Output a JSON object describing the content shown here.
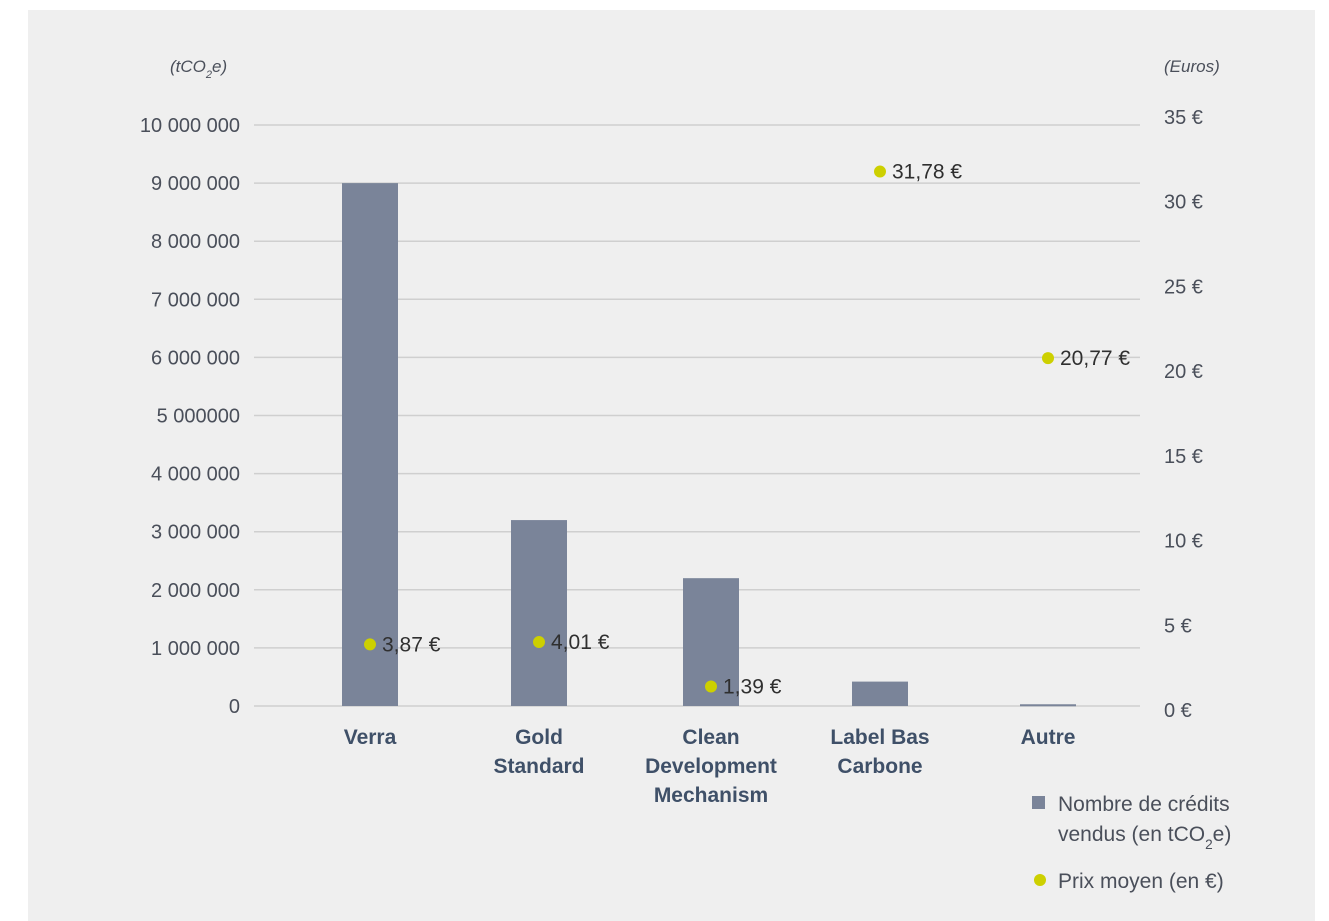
{
  "chart_data": {
    "type": "bar",
    "categories": [
      "Verra",
      "Gold Standard",
      "Clean Development Mechanism",
      "Label Bas Carbone",
      "Autre"
    ],
    "category_lines": [
      [
        "Verra"
      ],
      [
        "Gold",
        "Standard"
      ],
      [
        "Clean",
        "Development",
        "Mechanism"
      ],
      [
        "Label Bas",
        "Carbone"
      ],
      [
        "Autre"
      ]
    ],
    "series": [
      {
        "name": "Nombre de crédits vendus (en tCO₂e)",
        "type": "bar",
        "axis": "left",
        "values": [
          9000000,
          3200000,
          2200000,
          420000,
          30000
        ]
      },
      {
        "name": "Prix moyen (en €)",
        "type": "scatter",
        "axis": "right",
        "values": [
          3.87,
          4.01,
          1.39,
          31.78,
          20.77
        ],
        "labels": [
          "3,87 €",
          "4,01 €",
          "1,39 €",
          "31,78 €",
          "20,77 €"
        ]
      }
    ],
    "y_left": {
      "unit_label": "(tCO₂e)",
      "ylim": [
        0,
        10000000
      ],
      "ticks": [
        0,
        1000000,
        2000000,
        3000000,
        4000000,
        5000000,
        6000000,
        7000000,
        8000000,
        9000000,
        10000000
      ],
      "tick_labels": [
        "0",
        "1 000 000",
        "2 000 000",
        "3 000 000",
        "4 000 000",
        "5 000000",
        "6 000 000",
        "7 000 000",
        "8 000 000",
        "9 000 000",
        "10 000 000"
      ]
    },
    "y_right": {
      "unit_label": "(Euros)",
      "ylim": [
        0,
        35
      ],
      "ticks": [
        0,
        5,
        10,
        15,
        20,
        25,
        30,
        35
      ],
      "tick_labels": [
        "0 €",
        "5 €",
        "10 €",
        "15 €",
        "20 €",
        "25 €",
        "30 €",
        "35 €"
      ]
    },
    "grid": true,
    "legend_placement": "bottom-right",
    "legend": [
      {
        "text_lines": [
          "Nombre de crédits",
          "vendus (en tCO₂e)"
        ]
      },
      {
        "text_lines": [
          "Prix moyen (en €)"
        ]
      }
    ],
    "colors": {
      "bar": "#7a8499",
      "dot": "#cdd000",
      "grid": "#cfcfcf",
      "background": "#efefef"
    }
  }
}
